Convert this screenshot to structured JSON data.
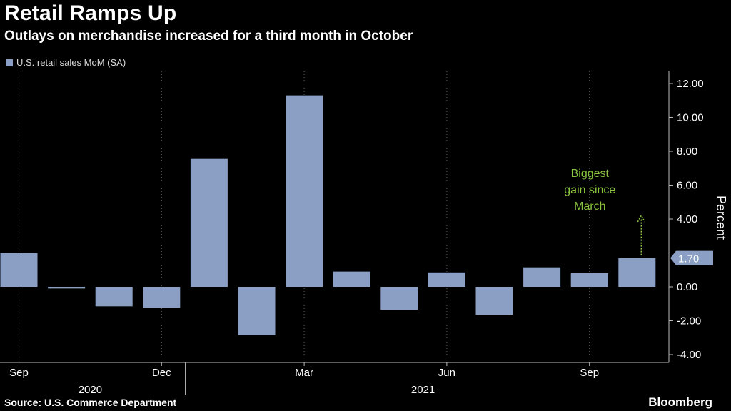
{
  "header": {
    "title": "Retail Ramps Up",
    "subtitle": "Outlays on merchandise increased for a third month in October"
  },
  "footer": {
    "source": "Source: U.S. Commerce Department",
    "brand": "Bloomberg"
  },
  "chart_data": {
    "type": "bar",
    "title": "Retail Ramps Up",
    "subtitle": "Outlays on merchandise increased for a third month in October",
    "categories": [
      "Sep 2020",
      "Oct 2020",
      "Nov 2020",
      "Dec 2020",
      "Jan 2021",
      "Feb 2021",
      "Mar 2021",
      "Apr 2021",
      "May 2021",
      "Jun 2021",
      "Jul 2021",
      "Aug 2021",
      "Sep 2021",
      "Oct 2021"
    ],
    "series": [
      {
        "name": "U.S. retail sales MoM (SA)",
        "values": [
          2.0,
          -0.1,
          -1.15,
          -1.25,
          7.55,
          -2.85,
          11.3,
          0.9,
          -1.35,
          0.85,
          -1.65,
          1.15,
          0.8,
          1.7
        ]
      }
    ],
    "x_tick_labels": [
      "Sep",
      "Dec",
      "Mar",
      "Jun",
      "Sep"
    ],
    "x_tick_indices": [
      0,
      3,
      6,
      9,
      12
    ],
    "year_labels": [
      {
        "label": "2020",
        "index": 1.5
      },
      {
        "label": "2021",
        "index": 8.5
      }
    ],
    "year_divider_index": 3.5,
    "ylabel": "Percent",
    "ylim": [
      -4,
      12
    ],
    "y_ticks": [
      -4,
      -2,
      0,
      2,
      4,
      6,
      8,
      10,
      12
    ],
    "y_tick_labels": [
      "-4.00",
      "-2.00",
      "0.00",
      "2.00",
      "4.00",
      "6.00",
      "8.00",
      "10.00",
      "12.00"
    ],
    "y_axis_position": "right",
    "grid": "vertical dotted",
    "legend_position": "top-left",
    "last_value_label": "1.70",
    "annotation": {
      "text_lines": [
        "Biggest",
        "gain since",
        "March"
      ],
      "color": "#8bc53f",
      "target_index": 13
    },
    "bar_color": "#8a9fc3"
  }
}
